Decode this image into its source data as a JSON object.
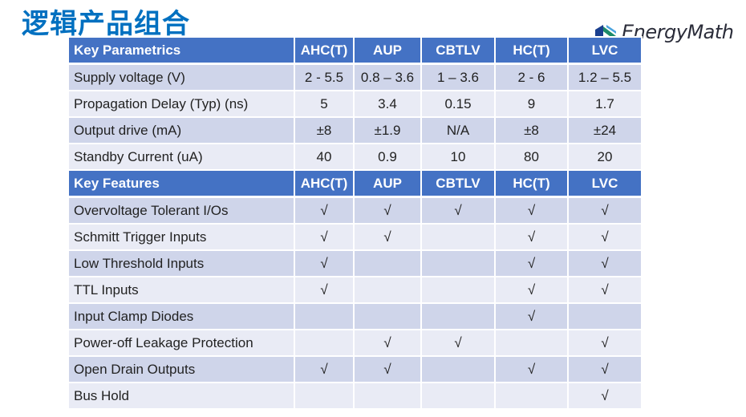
{
  "title": "逻辑产品组合",
  "logo": {
    "text": "EnergyMath"
  },
  "colors": {
    "header": "#4472C4",
    "row_dark": "#CFD5EA",
    "row_light": "#E9EBF5",
    "title": "#0070C0"
  },
  "columns": [
    "AHC(T)",
    "AUP",
    "CBTLV",
    "HC(T)",
    "LVC"
  ],
  "parametrics": {
    "header": "Key Parametrics",
    "rows": [
      {
        "label": "Supply voltage (V)",
        "values": [
          "2 - 5.5",
          "0.8 – 3.6",
          "1 – 3.6",
          "2 - 6",
          "1.2 – 5.5"
        ]
      },
      {
        "label": "Propagation Delay (Typ) (ns)",
        "values": [
          "5",
          "3.4",
          "0.15",
          "9",
          "1.7"
        ]
      },
      {
        "label": "Output drive (mA)",
        "values": [
          "±8",
          "±1.9",
          "N/A",
          "±8",
          "±24"
        ]
      },
      {
        "label": "Standby Current (uA)",
        "values": [
          "40",
          "0.9",
          "10",
          "80",
          "20"
        ]
      }
    ]
  },
  "features": {
    "header": "Key Features",
    "rows": [
      {
        "label": "Overvoltage Tolerant I/Os",
        "values": [
          "√",
          "√",
          "√",
          "√",
          "√"
        ]
      },
      {
        "label": "Schmitt Trigger Inputs",
        "values": [
          "√",
          "√",
          "",
          "√",
          "√"
        ]
      },
      {
        "label": "Low Threshold Inputs",
        "values": [
          "√",
          "",
          "",
          "√",
          "√"
        ]
      },
      {
        "label": "TTL Inputs",
        "values": [
          "√",
          "",
          "",
          "√",
          "√"
        ]
      },
      {
        "label": "Input Clamp Diodes",
        "values": [
          "",
          "",
          "",
          "√",
          ""
        ]
      },
      {
        "label": "Power-off Leakage Protection",
        "values": [
          "",
          "√",
          "√",
          "",
          "√"
        ]
      },
      {
        "label": "Open Drain Outputs",
        "values": [
          "√",
          "√",
          "",
          "√",
          "√"
        ]
      },
      {
        "label": "Bus Hold",
        "values": [
          "",
          "",
          "",
          "",
          "√"
        ]
      }
    ]
  }
}
